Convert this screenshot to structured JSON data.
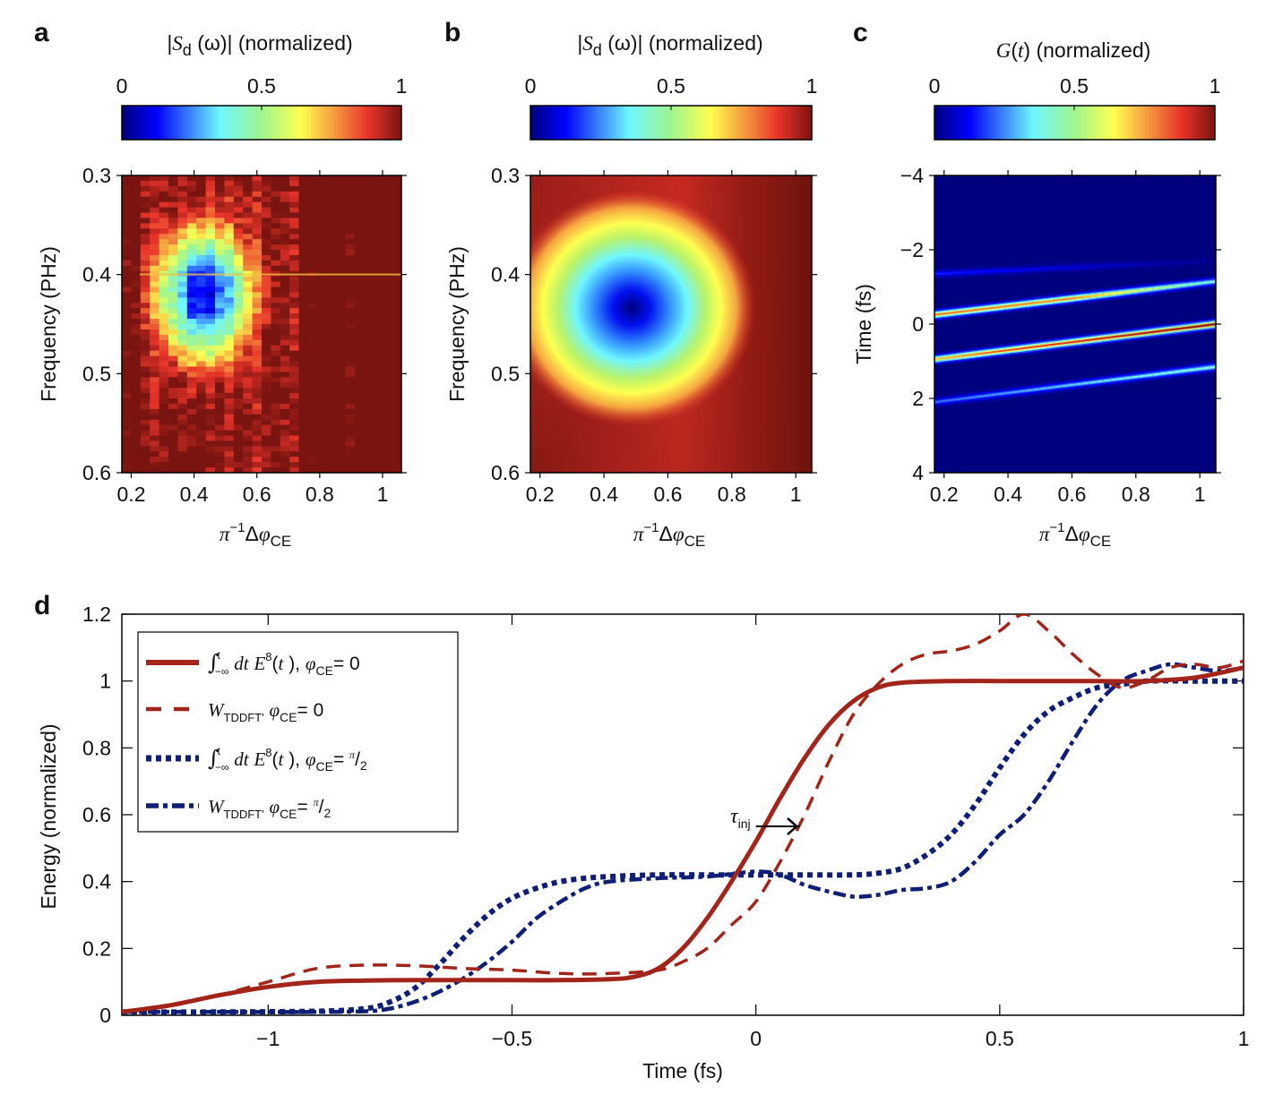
{
  "chart_data": [
    {
      "panel": "a",
      "type": "heatmap",
      "title": "|S_d (ω)| (normalized)",
      "title_parts": {
        "pre": "|",
        "sym": "S",
        "sub": "d",
        "arg": " (ω)| (normalized)"
      },
      "colormap": "jet",
      "colorbar": {
        "ticks": [
          "0",
          "0.5",
          "1"
        ],
        "range": [
          0,
          1
        ]
      },
      "xlabel": "π⁻¹Δφ_CE",
      "ylabel": "Frequency (PHz)",
      "xlim": [
        0.17,
        1.06
      ],
      "ylim": [
        0.3,
        0.6
      ],
      "y_inverted": true,
      "x_ticks": [
        "0.2",
        "0.4",
        "0.6",
        "0.8",
        "1"
      ],
      "y_ticks": [
        "0.3",
        "0.4",
        "0.5",
        "0.6"
      ],
      "description": "Measured noisy map; minimum (~0.05) near x≈0.43, f≈0.42 PHz; mostly 0.7–1 elsewhere",
      "minimum": {
        "x": 0.43,
        "y": 0.42,
        "value": 0.05
      }
    },
    {
      "panel": "b",
      "type": "heatmap",
      "title": "|S_d (ω)| (normalized)",
      "title_parts": {
        "pre": "|",
        "sym": "S",
        "sub": "d",
        "arg": " (ω)| (normalized)"
      },
      "colormap": "jet",
      "colorbar": {
        "ticks": [
          "0",
          "0.5",
          "1"
        ],
        "range": [
          0,
          1
        ]
      },
      "xlabel": "π⁻¹Δφ_CE",
      "ylabel": "Frequency (PHz)",
      "xlim": [
        0.17,
        1.05
      ],
      "ylim": [
        0.3,
        0.6
      ],
      "y_inverted": true,
      "x_ticks": [
        "0.2",
        "0.4",
        "0.6",
        "0.8",
        "1"
      ],
      "y_ticks": [
        "0.3",
        "0.4",
        "0.5",
        "0.6"
      ],
      "description": "Smooth simulated map; single minimum at x≈0.49, f≈0.435 PHz",
      "minimum": {
        "x": 0.49,
        "y": 0.435,
        "value": 0.0
      }
    },
    {
      "panel": "c",
      "type": "heatmap",
      "title": "G(t) (normalized)",
      "colormap": "jet",
      "colorbar": {
        "ticks": [
          "0",
          "0.5",
          "1"
        ],
        "range": [
          0,
          1
        ]
      },
      "xlabel": "π⁻¹Δφ_CE",
      "ylabel": "Time (fs)",
      "xlim": [
        0.17,
        1.05
      ],
      "ylim": [
        -4,
        4
      ],
      "y_inverted": false,
      "x_ticks": [
        "0.2",
        "0.4",
        "0.6",
        "0.8",
        "1"
      ],
      "y_ticks": [
        "−4",
        "−2",
        "0",
        "2",
        "4"
      ],
      "bands": [
        {
          "t_start": -1.35,
          "t_end": -1.7,
          "peak": 0.15,
          "fade": "right"
        },
        {
          "t_start": -0.25,
          "t_end": -1.15,
          "peak": 0.85,
          "fade": "right"
        },
        {
          "t_start": 0.95,
          "t_end": 0.0,
          "peak": 1.0,
          "fade": "left"
        },
        {
          "t_start": 2.1,
          "t_end": 1.15,
          "peak": 0.4,
          "fade": "left"
        }
      ]
    },
    {
      "panel": "d",
      "type": "line",
      "xlabel": "Time (fs)",
      "ylabel": "Energy (normalized)",
      "xlim": [
        -1.3,
        1.0
      ],
      "ylim": [
        0,
        1.2
      ],
      "x_ticks": [
        "−1",
        "−0.5",
        "0",
        "0.5",
        "1"
      ],
      "x_tick_values": [
        -1,
        -0.5,
        0,
        0.5,
        1
      ],
      "y_ticks": [
        "0",
        "0.2",
        "0.4",
        "0.6",
        "0.8",
        "1",
        "1.2"
      ],
      "y_tick_values": [
        0,
        0.2,
        0.4,
        0.6,
        0.8,
        1.0,
        1.2
      ],
      "legend_position": "top-left",
      "annotation": {
        "text": "τ",
        "sub": "inj",
        "x": 0.0,
        "y": 0.56,
        "arrow_to_x": 0.09
      },
      "series": [
        {
          "name": "∫_{−∞}^{t} dt E⁸(t), φ_CE = 0",
          "legend": {
            "pre": "dt ",
            "E": "E",
            "sup": "8",
            "post": "(t ), ",
            "phi": "φ",
            "sub": "CE",
            "eq": "= 0",
            "frac": false,
            "integral": true
          },
          "style": "solid",
          "color": "#a32418",
          "x": [
            -1.3,
            -1.2,
            -1.1,
            -1.0,
            -0.9,
            -0.8,
            -0.7,
            -0.6,
            -0.5,
            -0.4,
            -0.3,
            -0.25,
            -0.2,
            -0.15,
            -0.1,
            -0.05,
            0.0,
            0.05,
            0.1,
            0.15,
            0.2,
            0.25,
            0.3,
            0.4,
            0.5,
            0.6,
            0.7,
            0.8,
            0.9,
            1.0
          ],
          "y": [
            0.01,
            0.03,
            0.06,
            0.085,
            0.1,
            0.104,
            0.105,
            0.105,
            0.105,
            0.105,
            0.108,
            0.115,
            0.14,
            0.2,
            0.29,
            0.4,
            0.52,
            0.65,
            0.77,
            0.87,
            0.94,
            0.98,
            0.995,
            1.0,
            1.0,
            1.0,
            1.0,
            1.0,
            1.01,
            1.04
          ]
        },
        {
          "name": "W_TDDFT, φ_CE = 0",
          "legend": {
            "W": "W",
            "wsub": "TDDFT'",
            "phi": "φ",
            "sub": "CE",
            "eq": "= 0",
            "frac": false,
            "integral": false
          },
          "style": "dashed",
          "color": "#a32418",
          "x": [
            -1.3,
            -1.2,
            -1.1,
            -1.0,
            -0.9,
            -0.8,
            -0.7,
            -0.6,
            -0.5,
            -0.4,
            -0.3,
            -0.2,
            -0.15,
            -0.1,
            -0.05,
            0.0,
            0.05,
            0.1,
            0.15,
            0.2,
            0.25,
            0.3,
            0.35,
            0.4,
            0.45,
            0.5,
            0.55,
            0.6,
            0.65,
            0.7,
            0.75,
            0.8,
            0.85,
            0.9,
            0.95,
            1.0
          ],
          "y": [
            0.01,
            0.03,
            0.06,
            0.1,
            0.14,
            0.15,
            0.148,
            0.14,
            0.135,
            0.125,
            0.125,
            0.135,
            0.16,
            0.2,
            0.27,
            0.34,
            0.46,
            0.6,
            0.76,
            0.9,
            0.99,
            1.05,
            1.08,
            1.09,
            1.11,
            1.15,
            1.2,
            1.15,
            1.08,
            1.02,
            0.98,
            1.0,
            1.04,
            1.05,
            1.04,
            1.06
          ]
        },
        {
          "name": "∫_{−∞}^{t} dt E⁸(t), φ_CE = π/2",
          "legend": {
            "pre": "dt ",
            "E": "E",
            "sup": "8",
            "post": "(t ), ",
            "phi": "φ",
            "sub": "CE",
            "eq": "= ",
            "frac": true,
            "integral": true
          },
          "style": "dotted",
          "color": "#0f1f78",
          "x": [
            -1.3,
            -1.1,
            -0.9,
            -0.8,
            -0.75,
            -0.7,
            -0.65,
            -0.6,
            -0.55,
            -0.5,
            -0.45,
            -0.4,
            -0.35,
            -0.3,
            -0.2,
            -0.1,
            0.0,
            0.1,
            0.2,
            0.25,
            0.3,
            0.35,
            0.4,
            0.45,
            0.5,
            0.55,
            0.6,
            0.65,
            0.7,
            0.75,
            0.8,
            0.9,
            1.0
          ],
          "y": [
            0.01,
            0.01,
            0.012,
            0.02,
            0.04,
            0.08,
            0.15,
            0.23,
            0.3,
            0.35,
            0.38,
            0.4,
            0.41,
            0.415,
            0.42,
            0.42,
            0.42,
            0.42,
            0.42,
            0.425,
            0.44,
            0.48,
            0.54,
            0.63,
            0.74,
            0.84,
            0.91,
            0.95,
            0.98,
            0.99,
            1.0,
            1.0,
            1.0
          ]
        },
        {
          "name": "W_TDDFT, φ_CE = π/2",
          "legend": {
            "W": "W",
            "wsub": "TDDFT'",
            "phi": "φ",
            "sub": "CE",
            "eq": "= ",
            "frac": true,
            "integral": false
          },
          "style": "dashdot",
          "color": "#0f1f78",
          "x": [
            -1.3,
            -1.1,
            -0.9,
            -0.8,
            -0.75,
            -0.7,
            -0.65,
            -0.6,
            -0.55,
            -0.5,
            -0.45,
            -0.4,
            -0.35,
            -0.3,
            -0.2,
            -0.1,
            0.0,
            0.05,
            0.1,
            0.15,
            0.2,
            0.25,
            0.3,
            0.35,
            0.4,
            0.45,
            0.5,
            0.55,
            0.6,
            0.65,
            0.7,
            0.75,
            0.8,
            0.85,
            0.9,
            0.95,
            1.0
          ],
          "y": [
            0.01,
            0.01,
            0.01,
            0.012,
            0.02,
            0.04,
            0.07,
            0.11,
            0.16,
            0.22,
            0.29,
            0.34,
            0.38,
            0.4,
            0.41,
            0.415,
            0.43,
            0.42,
            0.39,
            0.37,
            0.355,
            0.36,
            0.375,
            0.38,
            0.4,
            0.46,
            0.54,
            0.6,
            0.7,
            0.82,
            0.93,
            1.0,
            1.03,
            1.05,
            1.04,
            1.03,
            1.04
          ]
        }
      ]
    }
  ],
  "panels": {
    "a": {
      "letter": "a"
    },
    "b": {
      "letter": "b"
    },
    "c": {
      "letter": "c"
    },
    "d": {
      "letter": "d"
    }
  }
}
